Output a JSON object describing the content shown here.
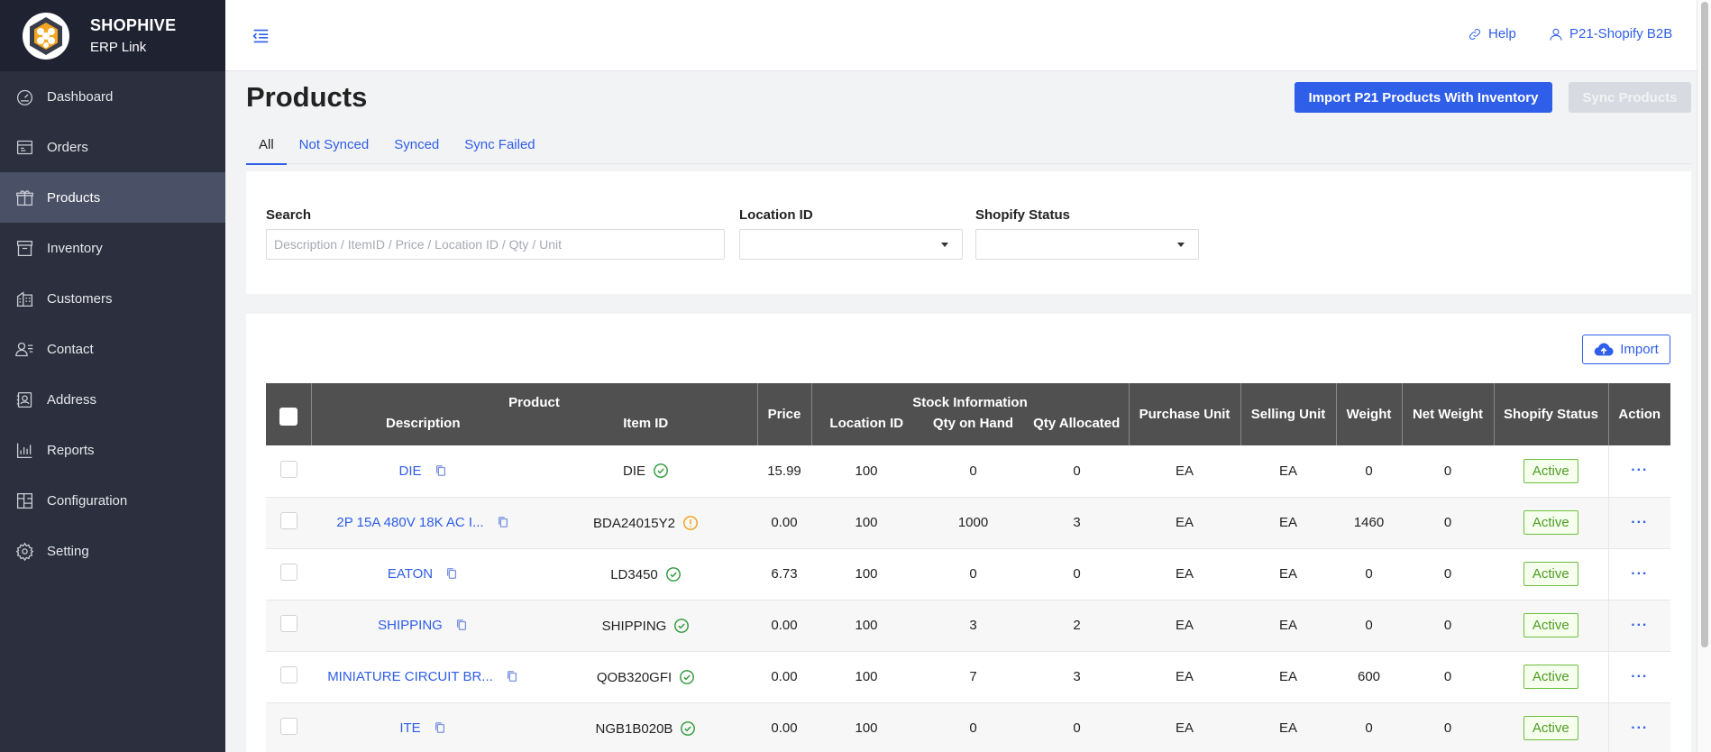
{
  "brand": {
    "name": "SHOPHIVE",
    "sub": "ERP Link"
  },
  "sidebar": {
    "items": [
      {
        "label": "Dashboard",
        "icon": "dashboard-icon"
      },
      {
        "label": "Orders",
        "icon": "orders-icon"
      },
      {
        "label": "Products",
        "icon": "gift-icon",
        "active": true
      },
      {
        "label": "Inventory",
        "icon": "inventory-icon"
      },
      {
        "label": "Customers",
        "icon": "building-icon"
      },
      {
        "label": "Contact",
        "icon": "contact-icon"
      },
      {
        "label": "Address",
        "icon": "address-icon"
      },
      {
        "label": "Reports",
        "icon": "bar-chart-icon"
      },
      {
        "label": "Configuration",
        "icon": "configuration-icon"
      },
      {
        "label": "Setting",
        "icon": "gear-icon"
      }
    ]
  },
  "header": {
    "help": "Help",
    "user": "P21-Shopify B2B"
  },
  "page": {
    "title": "Products",
    "import_p21_button": "Import P21 Products With Inventory",
    "sync_button": "Sync Products"
  },
  "tabs": [
    "All",
    "Not Synced",
    "Synced",
    "Sync Failed"
  ],
  "filters": {
    "search_label": "Search",
    "search_placeholder": "Description / ItemID / Price / Location ID / Qty / Unit",
    "search_value": "",
    "location_label": "Location ID",
    "location_value": "",
    "status_label": "Shopify Status",
    "status_value": ""
  },
  "import_button": "Import",
  "table": {
    "headers": {
      "product": "Product",
      "description": "Description",
      "item_id": "Item ID",
      "price": "Price",
      "stock": "Stock Information",
      "location_id": "Location ID",
      "qty_on_hand": "Qty on Hand",
      "qty_allocated": "Qty Allocated",
      "purchase_unit": "Purchase Unit",
      "selling_unit": "Selling Unit",
      "weight": "Weight",
      "net_weight": "Net Weight",
      "shopify_status": "Shopify Status",
      "action": "Action"
    },
    "rows": [
      {
        "description": "DIE",
        "item_id": "DIE",
        "sync": "synced",
        "price": "15.99",
        "location_id": "100",
        "qty_on_hand": "0",
        "qty_allocated": "0",
        "purchase_unit": "EA",
        "selling_unit": "EA",
        "weight": "0",
        "net_weight": "0",
        "status": "Active",
        "action": "···"
      },
      {
        "description": "2P 15A 480V 18K AC I...",
        "item_id": "BDA24015Y2",
        "sync": "warning",
        "price": "0.00",
        "location_id": "100",
        "qty_on_hand": "1000",
        "qty_allocated": "3",
        "purchase_unit": "EA",
        "selling_unit": "EA",
        "weight": "1460",
        "net_weight": "0",
        "status": "Active",
        "action": "···"
      },
      {
        "description": "EATON",
        "item_id": "LD3450",
        "sync": "synced",
        "price": "6.73",
        "location_id": "100",
        "qty_on_hand": "0",
        "qty_allocated": "0",
        "purchase_unit": "EA",
        "selling_unit": "EA",
        "weight": "0",
        "net_weight": "0",
        "status": "Active",
        "action": "···"
      },
      {
        "description": "SHIPPING",
        "item_id": "SHIPPING",
        "sync": "synced",
        "price": "0.00",
        "location_id": "100",
        "qty_on_hand": "3",
        "qty_allocated": "2",
        "purchase_unit": "EA",
        "selling_unit": "EA",
        "weight": "0",
        "net_weight": "0",
        "status": "Active",
        "action": "···"
      },
      {
        "description": "MINIATURE CIRCUIT BR...",
        "item_id": "QOB320GFI",
        "sync": "synced",
        "price": "0.00",
        "location_id": "100",
        "qty_on_hand": "7",
        "qty_allocated": "3",
        "purchase_unit": "EA",
        "selling_unit": "EA",
        "weight": "600",
        "net_weight": "0",
        "status": "Active",
        "action": "···"
      },
      {
        "description": "ITE",
        "item_id": "NGB1B020B",
        "sync": "synced",
        "price": "0.00",
        "location_id": "100",
        "qty_on_hand": "0",
        "qty_allocated": "0",
        "purchase_unit": "EA",
        "selling_unit": "EA",
        "weight": "0",
        "net_weight": "0",
        "status": "Active",
        "action": "···"
      }
    ]
  },
  "colors": {
    "accent": "#2f5ee8",
    "sidebar": "#2c2f3e",
    "synced": "#2e9a3a",
    "warning": "#f0a21b",
    "active_badge": "#6fbf3f"
  }
}
